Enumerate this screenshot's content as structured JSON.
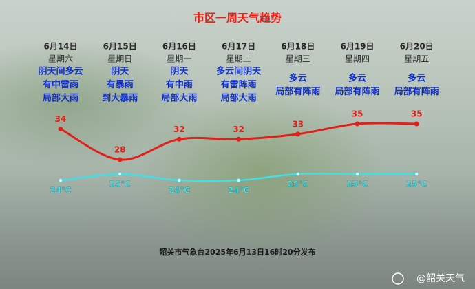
{
  "chart_data": {
    "type": "line",
    "title": "市区一周天气趋势",
    "categories": [
      "6月14日",
      "6月15日",
      "6月16日",
      "6月17日",
      "6月18日",
      "6月19日",
      "6月20日"
    ],
    "weekdays": [
      "星期六",
      "星期日",
      "星期一",
      "星期二",
      "星期三",
      "星期四",
      "星期五"
    ],
    "weather": [
      [
        "阴天间多云",
        "有中雷雨",
        "局部大雨"
      ],
      [
        "阴天",
        "有暴雨",
        "到大暴雨"
      ],
      [
        "阴天",
        "有中雨",
        "局部大雨"
      ],
      [
        "多云间阴天",
        "有雷阵雨",
        "局部大雨"
      ],
      [
        "多云",
        "局部有阵雨"
      ],
      [
        "多云",
        "局部有阵雨"
      ],
      [
        "多云",
        "局部有阵雨"
      ]
    ],
    "series": [
      {
        "color": "#e0201a",
        "values": [
          34,
          28,
          32,
          32,
          33,
          35,
          35
        ]
      },
      {
        "color": "#40e0e8",
        "values": [
          24,
          25,
          24,
          24,
          25,
          25,
          25
        ],
        "value_labels": [
          "24℃",
          "25℃",
          "24℃",
          "24℃",
          "25℃",
          "25℃",
          "25℃"
        ]
      }
    ],
    "footer": "韶关市气象台2025年6月13日16时20分发布",
    "watermark": "@韶关天气"
  }
}
